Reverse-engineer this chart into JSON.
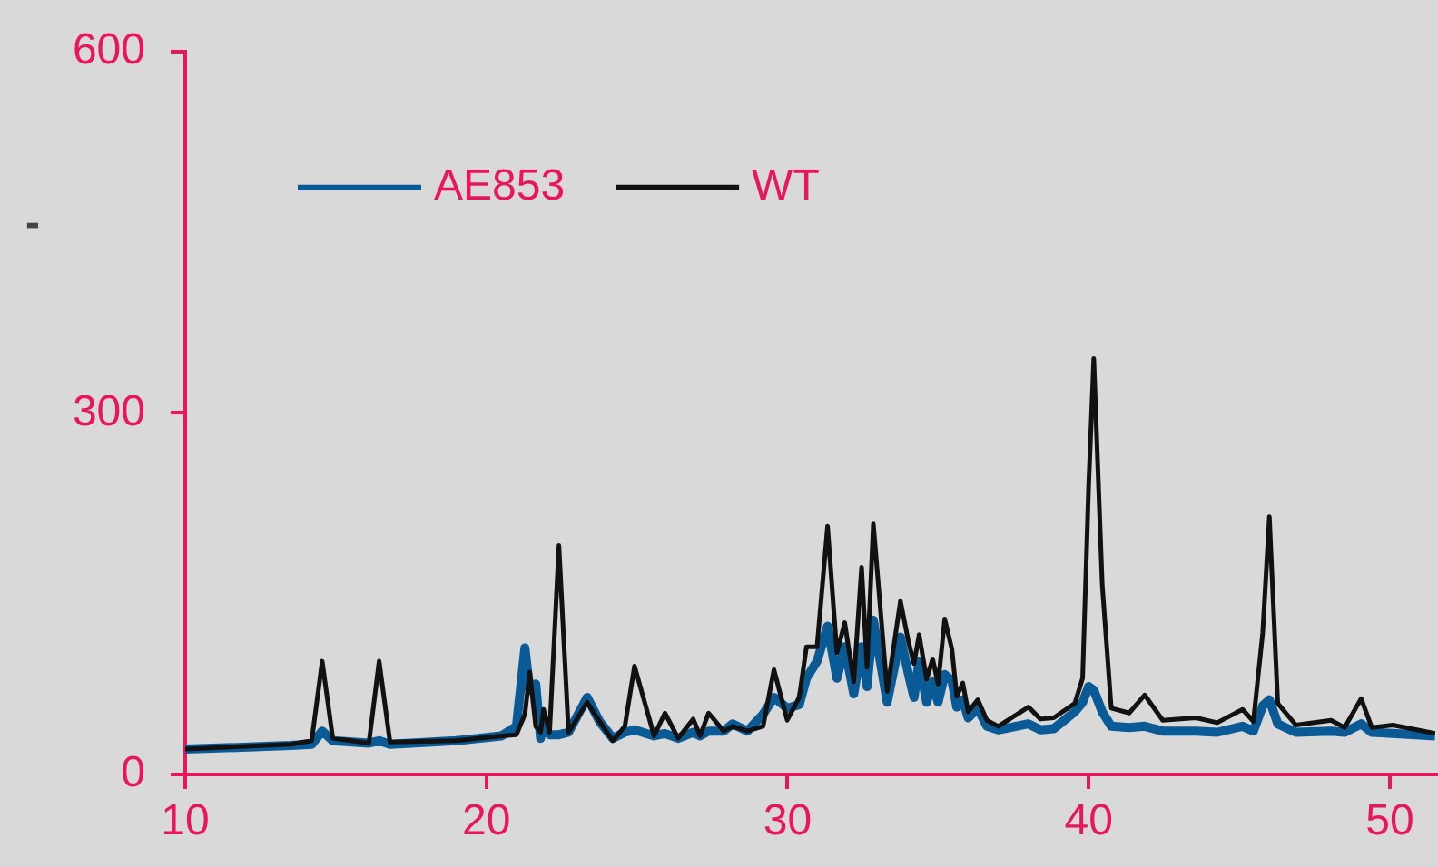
{
  "chart_data": {
    "type": "line",
    "ylabel": "-",
    "x": [
      10,
      13.5,
      14.2,
      14.55,
      14.9,
      16.1,
      16.44,
      16.8,
      19,
      20.5,
      21.0,
      21.28,
      21.44,
      21.64,
      21.8,
      21.9,
      22.1,
      22.41,
      22.73,
      23.35,
      23.76,
      24.2,
      24.6,
      24.92,
      25.57,
      25.93,
      26.37,
      26.87,
      27.1,
      27.38,
      27.88,
      28.18,
      28.67,
      29.19,
      29.55,
      29.99,
      30.39,
      30.63,
      30.98,
      31.33,
      31.64,
      31.9,
      32.2,
      32.46,
      32.64,
      32.85,
      33.31,
      33.75,
      34.01,
      34.2,
      34.37,
      34.62,
      34.82,
      35.0,
      35.22,
      35.46,
      35.62,
      35.82,
      36.0,
      36.32,
      36.62,
      37.0,
      38.0,
      38.4,
      38.84,
      39.54,
      39.8,
      40.0,
      40.17,
      40.45,
      40.75,
      41.35,
      41.86,
      42.46,
      43.56,
      44.27,
      45.11,
      45.47,
      45.78,
      46.0,
      46.28,
      46.88,
      48.05,
      48.5,
      49.05,
      49.4,
      50.1,
      51.5
    ],
    "series": [
      {
        "name": "AE853",
        "color": "#0a5a96",
        "values": [
          21,
          24,
          25,
          36,
          28,
          26,
          28,
          25,
          28,
          32,
          40,
          105,
          70,
          75,
          30,
          40,
          33,
          33,
          35,
          64,
          44,
          30,
          35,
          37,
          32,
          34,
          30,
          35,
          32,
          36,
          36,
          42,
          36,
          50,
          64,
          55,
          58,
          80,
          94,
          123,
          80,
          106,
          67,
          106,
          73,
          128,
          60,
          114,
          84,
          64,
          94,
          60,
          77,
          60,
          83,
          78,
          56,
          62,
          47,
          55,
          40,
          37,
          42,
          37,
          38,
          52,
          60,
          73,
          70,
          52,
          40,
          39,
          40,
          36,
          36,
          35,
          40,
          36,
          57,
          62,
          42,
          35,
          36,
          35,
          42,
          35,
          34,
          32
        ]
      },
      {
        "name": "WT",
        "color": "#111111",
        "values": [
          21,
          25,
          28,
          94,
          30,
          26,
          94,
          27,
          28,
          32,
          33,
          50,
          85,
          40,
          35,
          54,
          35,
          190,
          35,
          60,
          44,
          28,
          40,
          90,
          32,
          51,
          30,
          46,
          32,
          51,
          36,
          40,
          36,
          40,
          87,
          45,
          64,
          106,
          106,
          206,
          101,
          126,
          77,
          172,
          89,
          208,
          69,
          144,
          111,
          92,
          116,
          79,
          96,
          75,
          129,
          104,
          65,
          76,
          52,
          62,
          45,
          40,
          56,
          46,
          47,
          59,
          80,
          240,
          345,
          158,
          55,
          51,
          66,
          45,
          47,
          43,
          54,
          44,
          118,
          214,
          59,
          41,
          45,
          39,
          63,
          39,
          41,
          34
        ]
      }
    ],
    "xlim": [
      10,
      51.6
    ],
    "xticks": [
      10,
      20,
      30,
      40,
      50
    ],
    "ylim": [
      0,
      600
    ],
    "yticks": [
      0,
      300,
      600
    ],
    "grid": false,
    "legend": "top left",
    "marker": "none",
    "line_style": "solid"
  }
}
